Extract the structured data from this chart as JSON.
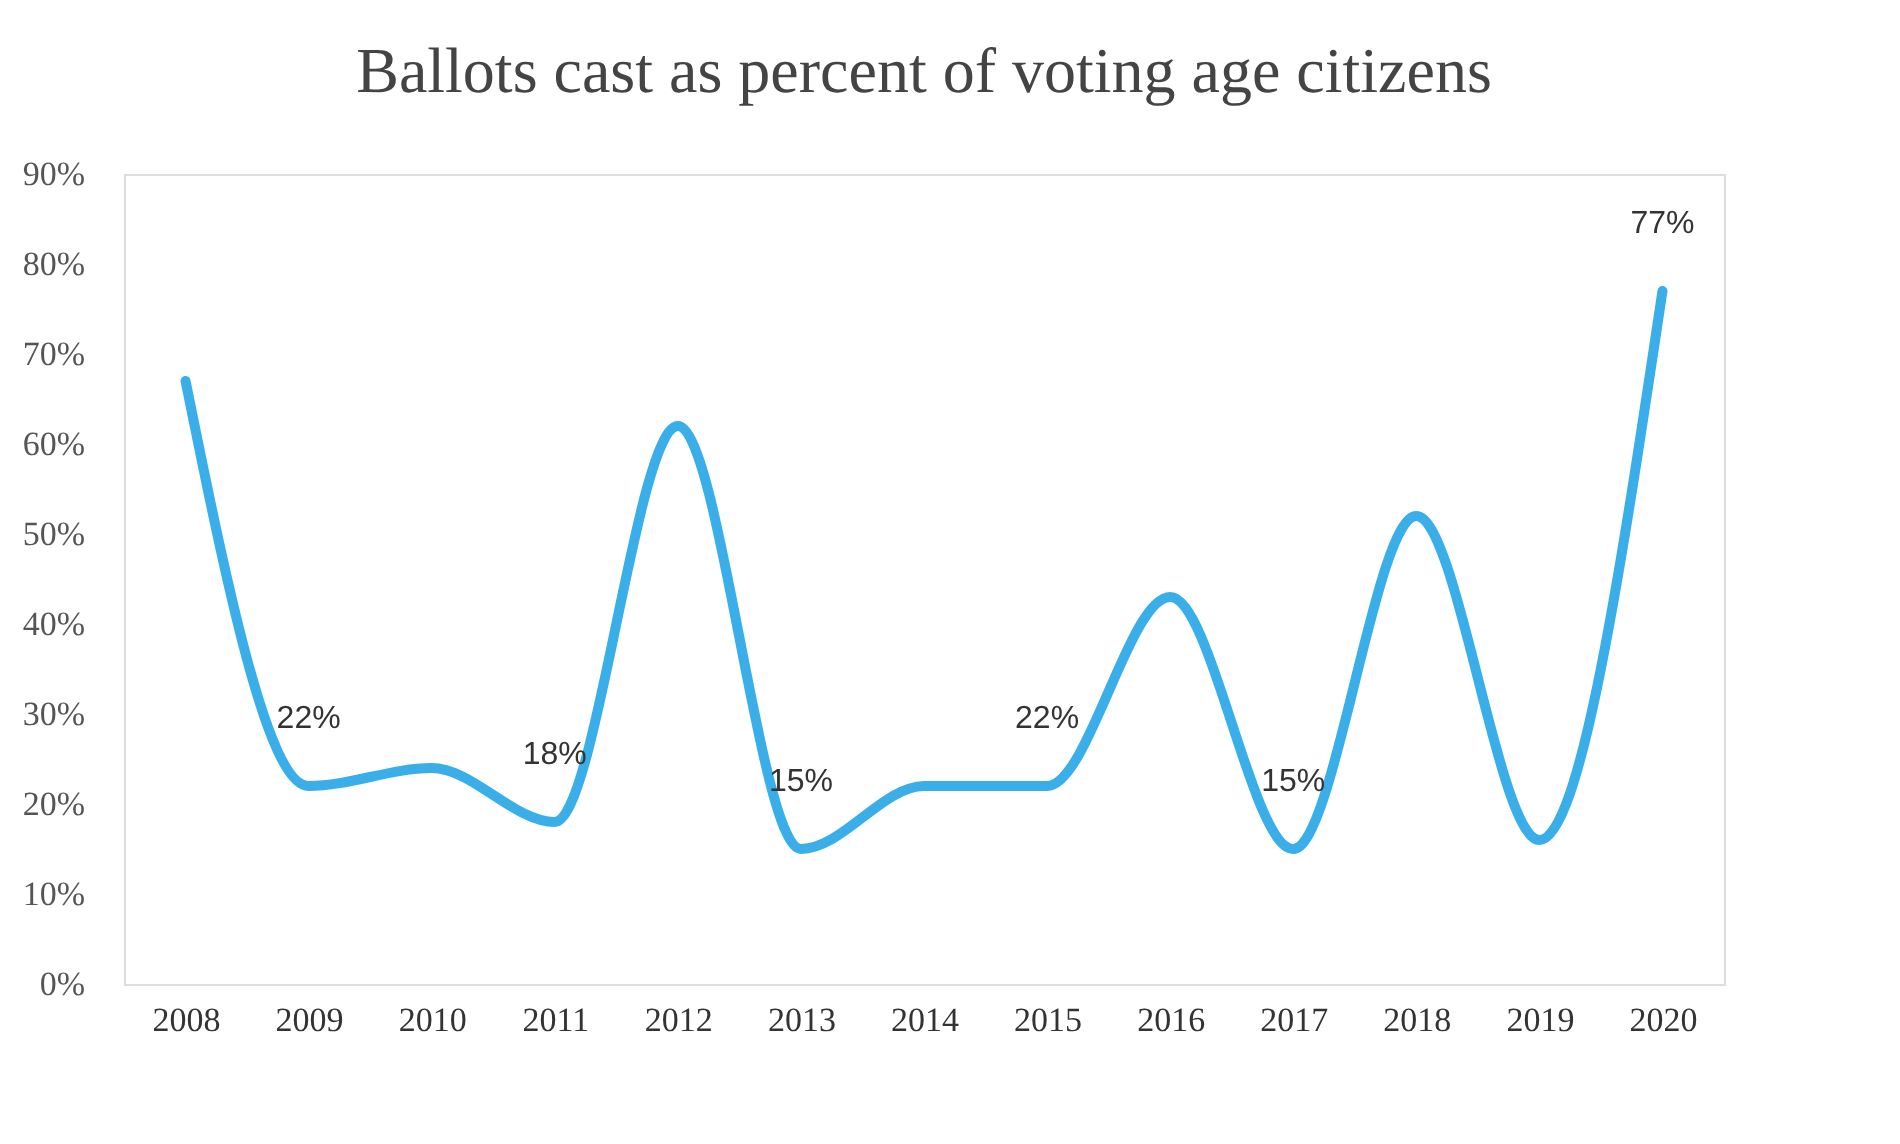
{
  "chart_data": {
    "type": "line",
    "title": "Ballots cast as percent of voting age citizens",
    "categories": [
      "2008",
      "2009",
      "2010",
      "2011",
      "2012",
      "2013",
      "2014",
      "2015",
      "2016",
      "2017",
      "2018",
      "2019",
      "2020"
    ],
    "series": [
      {
        "color": "#3aaee8",
        "values": [
          67,
          22,
          24,
          18,
          62,
          15,
          22,
          22,
          43,
          15,
          52,
          16,
          77
        ],
        "value_labels": [
          null,
          "22%",
          null,
          "18%",
          null,
          "15%",
          null,
          "22%",
          null,
          "15%",
          null,
          null,
          "77%"
        ]
      }
    ],
    "ylim": [
      0,
      90
    ],
    "yticks": [
      {
        "value": 0,
        "label": "0%"
      },
      {
        "value": 10,
        "label": "10%"
      },
      {
        "value": 20,
        "label": "20%"
      },
      {
        "value": 30,
        "label": "30%"
      },
      {
        "value": 40,
        "label": "40%"
      },
      {
        "value": 50,
        "label": "50%"
      },
      {
        "value": 60,
        "label": "60%"
      },
      {
        "value": 70,
        "label": "70%"
      },
      {
        "value": 80,
        "label": "80%"
      },
      {
        "value": 90,
        "label": "90%"
      }
    ],
    "grid": false,
    "marker": "none",
    "line_style": "solid"
  }
}
